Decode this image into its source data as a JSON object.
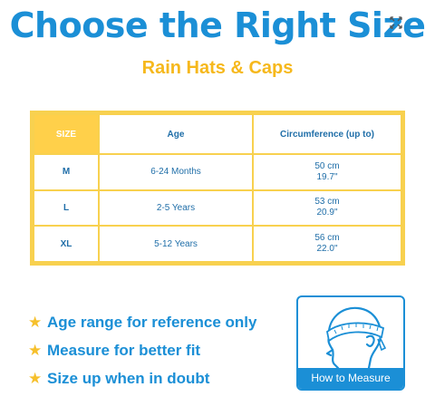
{
  "header": {
    "title": "Choose the Right Size",
    "subtitle": "Rain Hats & Caps",
    "expand_icon": "expand-arrows-icon"
  },
  "table": {
    "columns": [
      "SIZE",
      "Age",
      "Circumference (up to)"
    ],
    "rows": [
      {
        "size": "M",
        "age": "6-24 Months",
        "cm": "50 cm",
        "inch": "19.7\""
      },
      {
        "size": "L",
        "age": "2-5 Years",
        "cm": "53 cm",
        "inch": "20.9\""
      },
      {
        "size": "XL",
        "age": "5-12 Years",
        "cm": "56 cm",
        "inch": "22.0\""
      }
    ]
  },
  "notes": [
    {
      "icon": "star-icon",
      "text": "Age range for reference only"
    },
    {
      "icon": "star-icon",
      "text": "Measure for better fit"
    },
    {
      "icon": "star-icon",
      "text": "Size up when in doubt"
    }
  ],
  "measure": {
    "label": "How to Measure",
    "icon": "head-measuring-tape-icon"
  },
  "colors": {
    "primary_blue": "#1b8fd6",
    "accent_yellow": "#f6b81c",
    "table_border": "#f8d14f"
  }
}
